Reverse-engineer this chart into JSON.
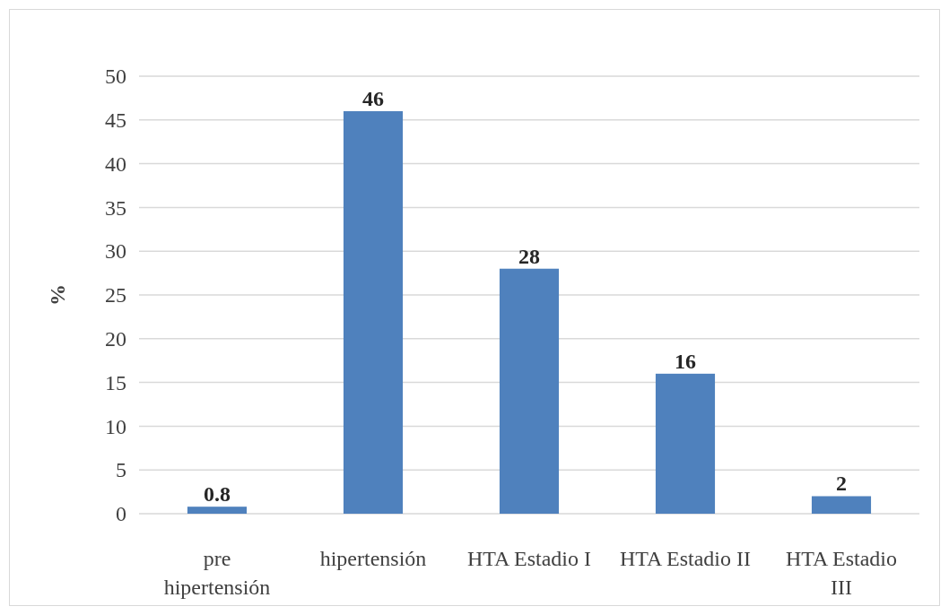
{
  "chart_data": {
    "type": "bar",
    "ylabel": "%",
    "categories": [
      "pre hipertensión",
      "hipertensión",
      "HTA Estadio I",
      "HTA Estadio II",
      "HTA Estadio III"
    ],
    "values": [
      0.8,
      46,
      28,
      16,
      2
    ],
    "color": "#4f81bd",
    "ylim": [
      0,
      50
    ],
    "yticks": [
      0,
      5,
      10,
      15,
      20,
      25,
      30,
      35,
      40,
      45,
      50
    ],
    "grid": "y",
    "data_labels": true
  }
}
